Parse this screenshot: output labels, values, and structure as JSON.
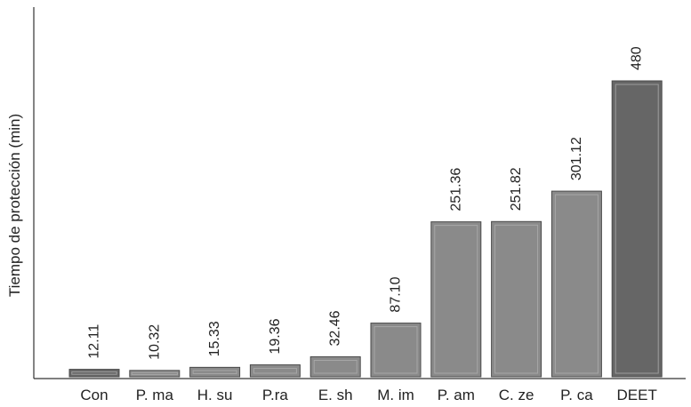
{
  "chart_data": {
    "type": "bar",
    "title": "",
    "xlabel": "",
    "ylabel": "Tiempo de protección (min)",
    "ylim": [
      0,
      560
    ],
    "grid": false,
    "categories": [
      "Con",
      "P. ma",
      "H. su",
      "P.ra",
      "E. sh",
      "M. im",
      "P. am",
      "C. ze",
      "P. ca",
      "DEET"
    ],
    "values": [
      12.11,
      10.32,
      15.33,
      19.36,
      32.46,
      87.1,
      251.36,
      251.82,
      301.12,
      480
    ],
    "value_labels": [
      "12.11",
      "10.32",
      "15.33",
      "19.36",
      "32.46",
      "87.10",
      "251.36",
      "251.82",
      "301.12",
      "480"
    ],
    "colors": {
      "bar": "#8a8a8a",
      "bar_dark": "#666666",
      "bar_highlight": "#b4b4b4",
      "bar_shadow": "#4a4a4a",
      "axis": "#333333"
    }
  }
}
